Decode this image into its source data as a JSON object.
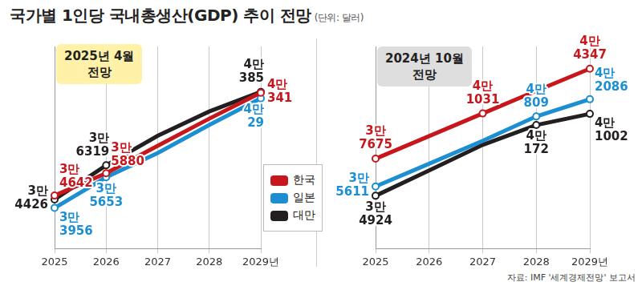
{
  "title": "국가별 1인당 국내총생산(GDP) 추이 전망",
  "unit": "(단위: 달러)",
  "source": "자료: IMF '세계경제전망' 보고서",
  "chart_data": [
    {
      "type": "line",
      "title": "2025년 4월 전망",
      "categories": [
        "2025",
        "2026",
        "2027",
        "2028",
        "2029년"
      ],
      "ylim": [
        31700,
        42900
      ],
      "tick_labels": "x",
      "grid": true,
      "data_labels": true,
      "marker": "circle",
      "line_style": "solid",
      "legend": "bottom right",
      "series": [
        {
          "name": "한국",
          "color": "#c8161d",
          "values": [
            34642,
            35880,
            37400,
            38900,
            40341
          ],
          "value_labels": [
            "3만 4642",
            "3만 5880",
            null,
            null,
            "4만 341"
          ]
        },
        {
          "name": "일본",
          "color": "#1b8fd2",
          "values": [
            33956,
            35653,
            37000,
            38550,
            40029
          ],
          "value_labels": [
            "3만 3956",
            "3만 5653",
            null,
            null,
            "4만 29"
          ]
        },
        {
          "name": "대만",
          "color": "#231f20",
          "values": [
            34426,
            36319,
            37950,
            39300,
            40385
          ],
          "value_labels": [
            "3만 4426",
            "3만 6319",
            null,
            null,
            "4만 385"
          ]
        }
      ]
    },
    {
      "type": "line",
      "title": "2024년 10월 전망",
      "categories": [
        "2025",
        "2026",
        "2027",
        "2028",
        "2029년"
      ],
      "ylim": [
        31000,
        46000
      ],
      "tick_labels": "x",
      "grid": true,
      "data_labels": true,
      "marker": "circle",
      "line_style": "solid",
      "series": [
        {
          "name": "한국",
          "color": "#c8161d",
          "values": [
            37675,
            39350,
            41031,
            42700,
            44347
          ],
          "value_labels": [
            "3만 7675",
            null,
            "4만 1031",
            null,
            "4만 4347"
          ]
        },
        {
          "name": "일본",
          "color": "#1b8fd2",
          "values": [
            35611,
            37300,
            39000,
            40809,
            42086
          ],
          "value_labels": [
            "3만 5611",
            null,
            null,
            "4만 809",
            "4만 2086"
          ]
        },
        {
          "name": "대만",
          "color": "#231f20",
          "values": [
            34924,
            36800,
            38700,
            40172,
            41002
          ],
          "value_labels": [
            "3만 4924",
            null,
            null,
            "4만 172",
            "4만 1002"
          ]
        }
      ]
    }
  ]
}
